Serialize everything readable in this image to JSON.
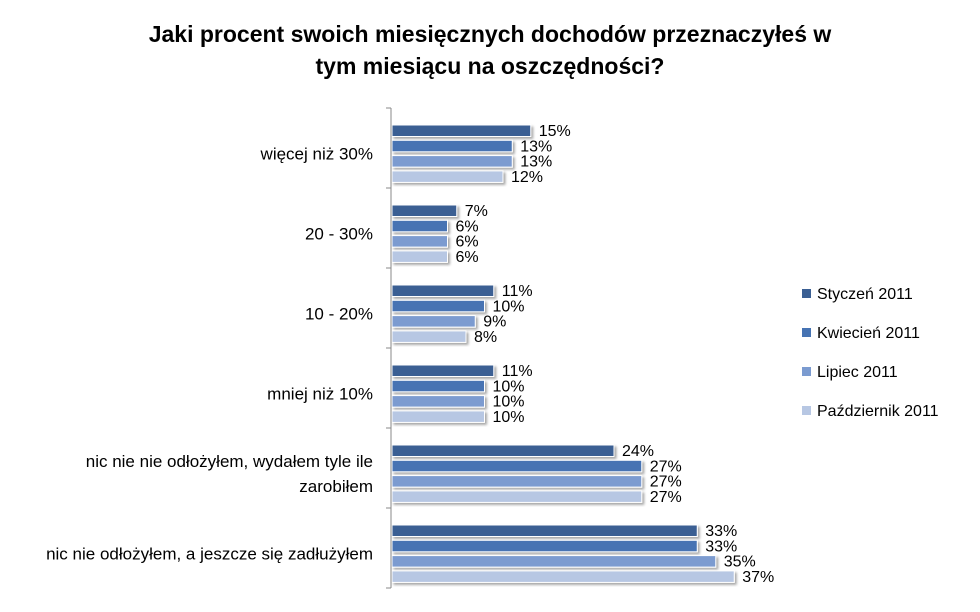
{
  "chart_data": {
    "type": "bar",
    "orientation": "horizontal",
    "title": [
      "Jaki procent swoich miesięcznych dochodów przeznaczyłeś w",
      "tym miesiącu na oszczędności?"
    ],
    "categories": [
      [
        "więcej niż 30%"
      ],
      [
        "20 - 30%"
      ],
      [
        "10 - 20%"
      ],
      [
        "mniej niż 10%"
      ],
      [
        "nic nie nie odłożyłem, wydałem tyle ile",
        "zarobiłem"
      ],
      [
        "nic nie odłożyłem, a jeszcze się zadłużyłem"
      ]
    ],
    "series": [
      {
        "name": "Styczeń 2011",
        "color": "#3a5f93",
        "values": [
          15,
          7,
          11,
          11,
          24,
          33
        ]
      },
      {
        "name": "Kwiecień 2011",
        "color": "#4673b3",
        "values": [
          13,
          6,
          10,
          10,
          27,
          33
        ]
      },
      {
        "name": "Lipiec 2011",
        "color": "#7b9bd0",
        "values": [
          13,
          6,
          9,
          10,
          27,
          35
        ]
      },
      {
        "name": "Październik 2011",
        "color": "#b7c7e3",
        "values": [
          12,
          6,
          8,
          10,
          27,
          37
        ]
      }
    ],
    "value_suffix": "%",
    "xlim": [
      0,
      40
    ],
    "grid": false,
    "legend_position": "right"
  }
}
